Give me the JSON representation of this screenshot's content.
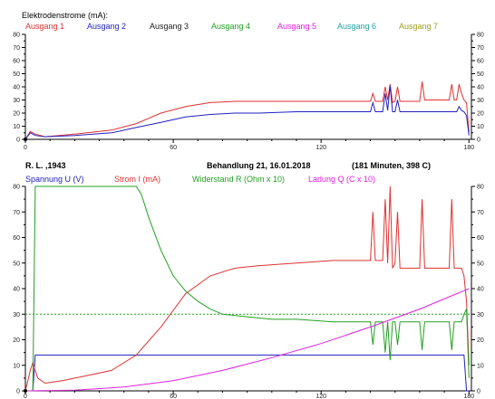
{
  "chart_data": [
    {
      "type": "line",
      "title": "Elektrodenstrome (mA):",
      "xlim": [
        0,
        181
      ],
      "ylim": [
        0,
        80
      ],
      "x_ticks": [
        0,
        60,
        120,
        180
      ],
      "y_ticks": [
        0,
        10,
        20,
        30,
        40,
        50,
        60,
        70,
        80
      ],
      "grid": false,
      "legend": "top",
      "legend_entries": [
        {
          "name": "Ausgang 1",
          "color": "#e03030"
        },
        {
          "name": "Ausgang 2",
          "color": "#2020c0"
        },
        {
          "name": "Ausgang 3",
          "color": "#202020"
        },
        {
          "name": "Ausgang 4",
          "color": "#20a020"
        },
        {
          "name": "Ausgang 5",
          "color": "#e020e0"
        },
        {
          "name": "Ausgang 6",
          "color": "#20a0a0"
        },
        {
          "name": "Ausgang 7",
          "color": "#a0a020"
        }
      ],
      "series": [
        {
          "name": "Ausgang 1",
          "color": "#e03030",
          "x": [
            0,
            2,
            4,
            8,
            20,
            35,
            45,
            55,
            65,
            75,
            85,
            95,
            110,
            125,
            140,
            141,
            142,
            145,
            146,
            147,
            148,
            149,
            150,
            151,
            152,
            153,
            154,
            155,
            156,
            160,
            161,
            162,
            163,
            164,
            165,
            166,
            167,
            168,
            169,
            170,
            171,
            172,
            173,
            174,
            175,
            176,
            177,
            178,
            179,
            180
          ],
          "y": [
            0,
            6,
            4,
            2,
            4,
            7,
            12,
            20,
            25,
            28,
            29,
            29,
            29,
            29,
            29,
            35,
            29,
            29,
            40,
            30,
            42,
            28,
            29,
            40,
            29,
            29,
            29,
            29,
            29,
            29,
            44,
            30,
            30,
            30,
            30,
            30,
            30,
            30,
            30,
            30,
            30,
            30,
            42,
            30,
            30,
            42,
            35,
            30,
            28,
            5
          ]
        },
        {
          "name": "Ausgang 2",
          "color": "#2020c0",
          "x": [
            0,
            2,
            4,
            8,
            20,
            35,
            45,
            55,
            65,
            75,
            85,
            95,
            110,
            125,
            140,
            141,
            142,
            145,
            146,
            147,
            148,
            149,
            150,
            151,
            152,
            153,
            154,
            155,
            156,
            160,
            161,
            162,
            163,
            164,
            165,
            166,
            167,
            168,
            169,
            170,
            171,
            172,
            173,
            174,
            175,
            176,
            177,
            178,
            179,
            180
          ],
          "y": [
            0,
            5,
            3,
            2,
            3,
            5,
            9,
            13,
            17,
            19,
            20,
            20,
            21,
            21,
            21,
            28,
            21,
            21,
            35,
            22,
            41,
            21,
            21,
            30,
            21,
            21,
            21,
            21,
            21,
            21,
            21,
            21,
            21,
            21,
            21,
            21,
            21,
            21,
            21,
            21,
            21,
            21,
            21,
            21,
            21,
            25,
            22,
            21,
            18,
            3
          ]
        }
      ]
    },
    {
      "type": "line",
      "xlim": [
        0,
        181
      ],
      "ylim": [
        0,
        80
      ],
      "x_ticks": [
        0,
        60,
        120,
        180
      ],
      "y_ticks": [
        0,
        10,
        20,
        30,
        40,
        50,
        60,
        70,
        80
      ],
      "grid": false,
      "info": {
        "patient": "R. L. ,1943",
        "treatment": "Behandlung 21,  16.01.2018",
        "summary": "(181 Minuten, 398 C)"
      },
      "reference_line": {
        "y": 30,
        "color": "#20a020",
        "style": "dotted"
      },
      "legend": "top",
      "legend_entries": [
        {
          "name": "Spannung U (V)",
          "color": "#2020c0"
        },
        {
          "name": "Strom I (mA)",
          "color": "#e03030"
        },
        {
          "name": "Widerstand R (Ohm x 10)",
          "color": "#20a020"
        },
        {
          "name": "Ladung Q (C x 10)",
          "color": "#e020e0"
        }
      ],
      "series": [
        {
          "name": "Spannung U (V)",
          "color": "#2020c0",
          "x": [
            0,
            3,
            4,
            178,
            179,
            180
          ],
          "y": [
            0,
            0,
            14,
            14,
            0,
            0
          ]
        },
        {
          "name": "Strom I (mA)",
          "color": "#e03030",
          "x": [
            0,
            2,
            3,
            5,
            8,
            15,
            25,
            35,
            45,
            55,
            65,
            75,
            85,
            95,
            110,
            125,
            135,
            140,
            141,
            142,
            143,
            145,
            146,
            147,
            148,
            149,
            150,
            151,
            152,
            153,
            154,
            155,
            160,
            161,
            162,
            163,
            164,
            165,
            166,
            167,
            168,
            169,
            170,
            171,
            172,
            173,
            174,
            175,
            176,
            177,
            178,
            179,
            180
          ],
          "y": [
            0,
            8,
            11,
            5,
            3,
            4,
            6,
            8,
            14,
            25,
            38,
            45,
            48,
            49,
            50,
            51,
            51,
            51,
            70,
            51,
            51,
            51,
            75,
            50,
            80,
            48,
            50,
            70,
            48,
            48,
            48,
            48,
            48,
            75,
            48,
            48,
            48,
            48,
            48,
            48,
            48,
            48,
            48,
            48,
            48,
            75,
            48,
            48,
            48,
            48,
            45,
            35,
            10
          ]
        },
        {
          "name": "Widerstand R (Ohm x 10)",
          "color": "#20a020",
          "x": [
            0,
            3,
            4,
            45,
            47,
            50,
            55,
            60,
            65,
            70,
            75,
            80,
            90,
            100,
            110,
            125,
            135,
            140,
            141,
            142,
            143,
            145,
            146,
            147,
            148,
            149,
            150,
            151,
            152,
            153,
            154,
            155,
            160,
            161,
            162,
            163,
            164,
            165,
            166,
            167,
            168,
            169,
            170,
            171,
            172,
            173,
            174,
            175,
            176,
            177,
            178,
            179,
            180
          ],
          "y": [
            0,
            0,
            80,
            80,
            77,
            68,
            55,
            45,
            39,
            35,
            32,
            30,
            29,
            28,
            28,
            27,
            27,
            27,
            18,
            27,
            27,
            27,
            15,
            27,
            12,
            27,
            27,
            18,
            27,
            27,
            27,
            27,
            27,
            16,
            27,
            27,
            27,
            27,
            27,
            27,
            27,
            27,
            27,
            27,
            27,
            16,
            27,
            27,
            27,
            27,
            30,
            32,
            5
          ]
        },
        {
          "name": "Ladung Q (C x 10)",
          "color": "#e020e0",
          "x": [
            0,
            20,
            40,
            60,
            80,
            100,
            120,
            140,
            160,
            180
          ],
          "y": [
            0,
            0.3,
            1.5,
            4,
            8,
            13,
            18.5,
            25,
            32,
            40
          ]
        }
      ]
    }
  ]
}
